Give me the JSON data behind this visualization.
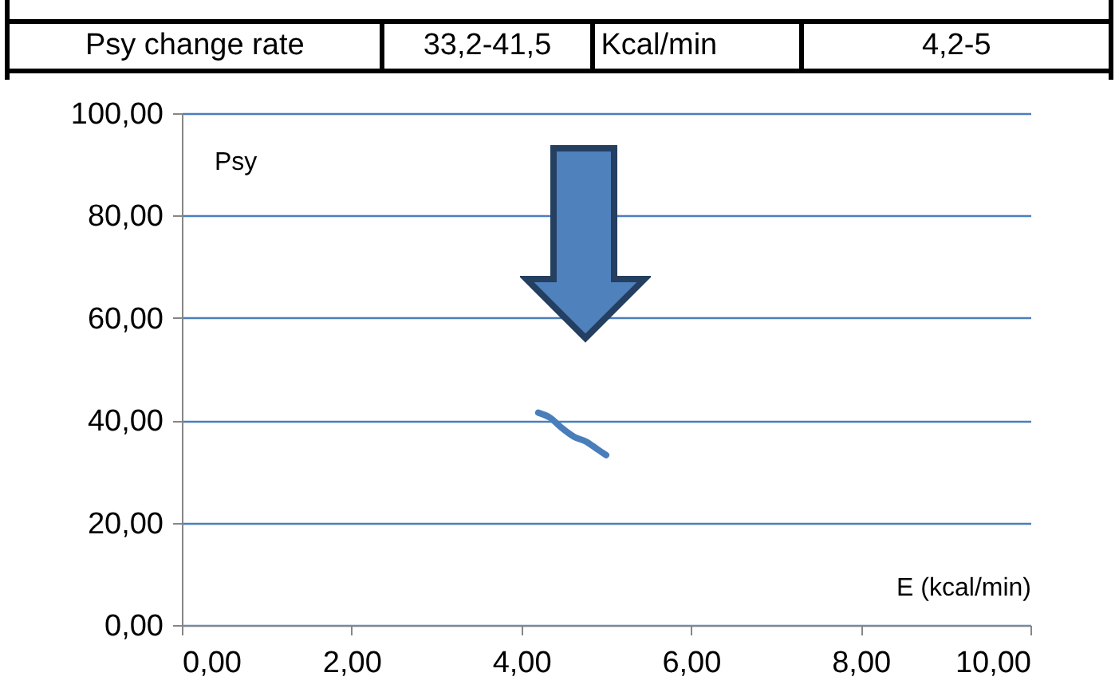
{
  "chart_data": {
    "type": "line",
    "xlabel": "E (kcal/min)",
    "ylabel": "Psy",
    "annotations": [
      "Psy change rate",
      "33,2-41,5",
      "Kcal/min",
      "4,2-5"
    ],
    "series": [
      {
        "color": "#4a7ebb",
        "x": [
          4.2,
          4.34,
          4.47,
          4.62,
          4.77,
          4.9,
          5.0
        ],
        "values": [
          41.5,
          40.5,
          38.6,
          36.8,
          35.8,
          34.3,
          33.2
        ]
      }
    ],
    "xlim": [
      0,
      10
    ],
    "ylim": [
      0,
      100
    ],
    "xticks": [
      {
        "value": 0,
        "label": "0,00"
      },
      {
        "value": 2,
        "label": "2,00"
      },
      {
        "value": 4,
        "label": "4,00"
      },
      {
        "value": 6,
        "label": "6,00"
      },
      {
        "value": 8,
        "label": "8,00"
      },
      {
        "value": 10,
        "label": "10,00"
      }
    ],
    "yticks": [
      {
        "value": 0,
        "label": "0,00"
      },
      {
        "value": 20,
        "label": "20,00"
      },
      {
        "value": 40,
        "label": "40,00"
      },
      {
        "value": 60,
        "label": "60,00"
      },
      {
        "value": 80,
        "label": "80,00"
      },
      {
        "value": 100,
        "label": "100,00"
      }
    ],
    "grid": "y",
    "legend": false,
    "marker": "none",
    "line_style": "solid"
  }
}
